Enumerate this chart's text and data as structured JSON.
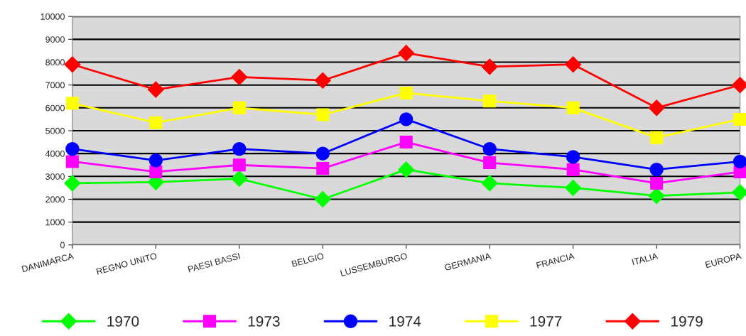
{
  "chart_data": {
    "type": "line",
    "categories": [
      "DANIMARCA",
      "REGNO UNITO",
      "PAESI BASSI",
      "BELGIO",
      "LUSSEMBURGO",
      "GERMANIA",
      "FRANCIA",
      "ITALIA",
      "EUROPA"
    ],
    "series": [
      {
        "name": "1970",
        "color": "#00ff00",
        "marker": "diamond",
        "values": [
          2700,
          2750,
          2900,
          2000,
          3300,
          2700,
          2500,
          2150,
          2300
        ]
      },
      {
        "name": "1973",
        "color": "#ff00ff",
        "marker": "square",
        "values": [
          3650,
          3200,
          3500,
          3350,
          4500,
          3600,
          3300,
          2700,
          3200
        ]
      },
      {
        "name": "1974",
        "color": "#0000ff",
        "marker": "circle",
        "values": [
          4200,
          3700,
          4200,
          4000,
          5500,
          4200,
          3850,
          3300,
          3650
        ]
      },
      {
        "name": "1977",
        "color": "#ffff00",
        "marker": "square",
        "values": [
          6200,
          5350,
          6000,
          5700,
          6650,
          6300,
          6000,
          4700,
          5500
        ]
      },
      {
        "name": "1979",
        "color": "#ff0000",
        "marker": "diamond",
        "values": [
          7900,
          6800,
          7350,
          7200,
          8400,
          7800,
          7900,
          6000,
          7000
        ]
      }
    ],
    "ylim": [
      0,
      10000
    ],
    "yticks": [
      0,
      1000,
      2000,
      3000,
      4000,
      5000,
      6000,
      7000,
      8000,
      9000,
      10000
    ],
    "grid": "y",
    "legend": "bottom",
    "line_style": "solid"
  }
}
